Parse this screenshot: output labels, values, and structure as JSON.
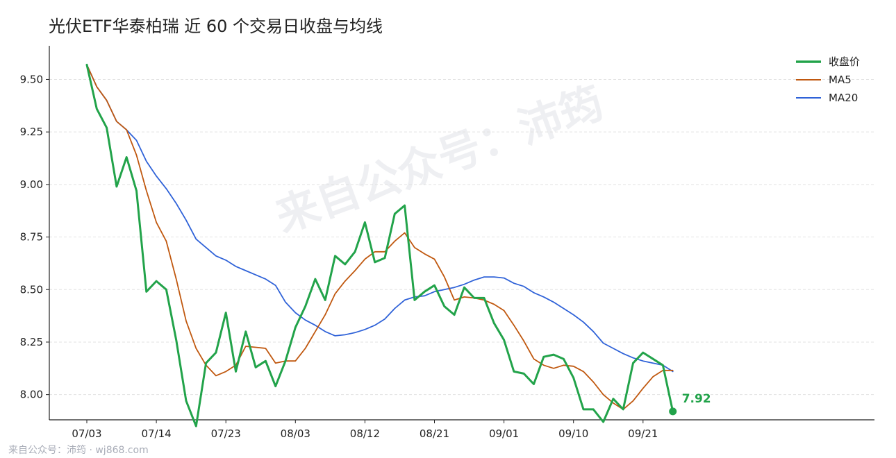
{
  "title": "光伏ETF华泰柏瑞 近 60 个交易日收盘与均线",
  "footer": "来自公众号：沛筠 · wj868.com",
  "watermark": "来自公众号：沛筠",
  "chart_data": {
    "type": "line",
    "title": "光伏ETF华泰柏瑞 近 60 个交易日收盘与均线",
    "xlabel": "",
    "ylabel": "",
    "ylim": [
      7.88,
      9.66
    ],
    "yticks": [
      8.0,
      8.25,
      8.5,
      8.75,
      9.0,
      9.25,
      9.5
    ],
    "ytick_labels": [
      "8.00",
      "8.25",
      "8.50",
      "8.75",
      "9.00",
      "9.25",
      "9.50"
    ],
    "xtick_labels": [
      {
        "index": 0,
        "label": "07/03"
      },
      {
        "index": 7,
        "label": "07/14"
      },
      {
        "index": 14,
        "label": "07/23"
      },
      {
        "index": 21,
        "label": "08/03"
      },
      {
        "index": 28,
        "label": "08/12"
      },
      {
        "index": 35,
        "label": "08/21"
      },
      {
        "index": 42,
        "label": "09/01"
      },
      {
        "index": 49,
        "label": "09/10"
      },
      {
        "index": 56,
        "label": "09/21"
      }
    ],
    "grid": "horizontal dashed",
    "legend": "top-right",
    "end_label": "7.92",
    "colors": {
      "close": "#22a34a",
      "ma5": "#c0580f",
      "ma20": "#2f62d8"
    },
    "series": [
      {
        "name": "收盘价",
        "key": "close",
        "values": [
          9.57,
          9.36,
          9.27,
          8.99,
          9.13,
          8.97,
          8.49,
          8.54,
          8.5,
          8.26,
          7.97,
          7.85,
          8.15,
          8.2,
          8.39,
          8.11,
          8.3,
          8.13,
          8.16,
          8.04,
          8.16,
          8.32,
          8.42,
          8.55,
          8.45,
          8.66,
          8.62,
          8.68,
          8.82,
          8.63,
          8.65,
          8.86,
          8.9,
          8.45,
          8.49,
          8.52,
          8.42,
          8.38,
          8.51,
          8.46,
          8.46,
          8.34,
          8.26,
          8.11,
          8.1,
          8.05,
          8.18,
          8.19,
          8.17,
          8.08,
          7.93,
          7.93,
          7.87,
          7.98,
          7.93,
          8.15,
          8.2,
          8.17,
          8.14,
          7.92
        ]
      },
      {
        "name": "MA5",
        "key": "ma5",
        "values": [
          9.57,
          9.465,
          9.4,
          9.3,
          9.26,
          9.14,
          8.97,
          8.82,
          8.73,
          8.55,
          8.35,
          8.22,
          8.14,
          8.09,
          8.11,
          8.14,
          8.23,
          8.225,
          8.22,
          8.15,
          8.16,
          8.16,
          8.22,
          8.3,
          8.38,
          8.48,
          8.54,
          8.59,
          8.645,
          8.68,
          8.68,
          8.73,
          8.77,
          8.7,
          8.67,
          8.645,
          8.56,
          8.45,
          8.465,
          8.46,
          8.45,
          8.43,
          8.4,
          8.33,
          8.255,
          8.17,
          8.14,
          8.125,
          8.14,
          8.135,
          8.11,
          8.06,
          8.0,
          7.96,
          7.93,
          7.97,
          8.03,
          8.085,
          8.115,
          8.115
        ]
      },
      {
        "name": "MA20",
        "key": "ma20",
        "values": [
          9.57,
          9.465,
          9.4,
          9.3,
          9.26,
          9.21,
          9.11,
          9.04,
          8.98,
          8.91,
          8.83,
          8.74,
          8.7,
          8.66,
          8.64,
          8.61,
          8.59,
          8.57,
          8.55,
          8.52,
          8.44,
          8.39,
          8.355,
          8.33,
          8.3,
          8.28,
          8.285,
          8.295,
          8.31,
          8.33,
          8.36,
          8.41,
          8.45,
          8.465,
          8.47,
          8.49,
          8.5,
          8.51,
          8.525,
          8.545,
          8.56,
          8.56,
          8.555,
          8.53,
          8.515,
          8.485,
          8.465,
          8.44,
          8.41,
          8.38,
          8.345,
          8.3,
          8.245,
          8.22,
          8.195,
          8.175,
          8.16,
          8.15,
          8.14,
          8.11
        ]
      }
    ]
  }
}
